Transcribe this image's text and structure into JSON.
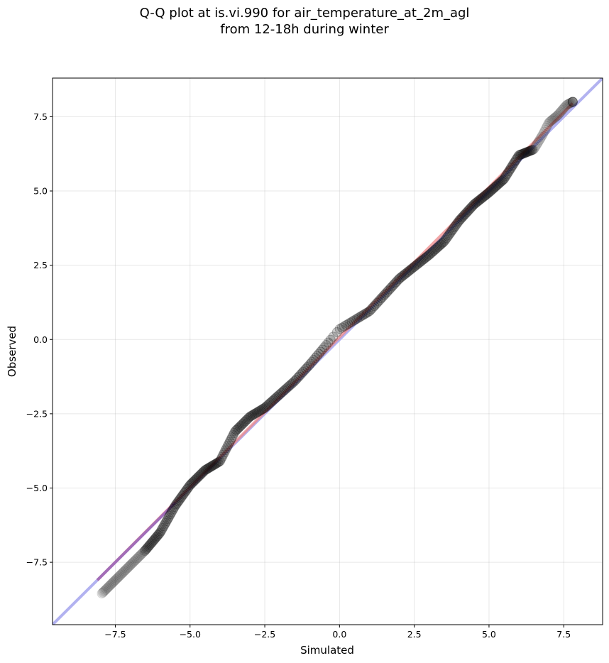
{
  "chart_data": {
    "type": "scatter",
    "title_line1": "Q-Q plot at is.vi.990 for air_temperature_at_2m_agl",
    "title_line2": "from 12-18h during winter",
    "xlabel": "Simulated",
    "ylabel": "Observed",
    "xlim": [
      -9.6,
      8.8
    ],
    "ylim": [
      -9.6,
      8.8
    ],
    "xticks": [
      -7.5,
      -5.0,
      -2.5,
      0.0,
      2.5,
      5.0,
      7.5
    ],
    "yticks": [
      -7.5,
      -5.0,
      -2.5,
      0.0,
      2.5,
      5.0,
      7.5
    ],
    "xtick_labels": [
      "−7.5",
      "−5.0",
      "−2.5",
      "0.0",
      "2.5",
      "5.0",
      "7.5"
    ],
    "ytick_labels": [
      "−7.5",
      "−5.0",
      "−2.5",
      "0.0",
      "2.5",
      "5.0",
      "7.5"
    ],
    "grid": true,
    "colors": {
      "points": "#000000",
      "identity_line": "#aaaaee",
      "fit_line": "#ee8888",
      "overlap": "#9966bb"
    },
    "identity_line": {
      "from": [
        -9.6,
        -9.6
      ],
      "to": [
        8.8,
        8.8
      ]
    },
    "fit_line": {
      "from": [
        -8.1,
        -8.1
      ],
      "to": [
        7.8,
        7.95
      ]
    },
    "quantile_anchors": {
      "x": [
        -8.1,
        -7.9,
        -7.5,
        -7.0,
        -6.5,
        -6.0,
        -5.5,
        -5.0,
        -4.5,
        -4.0,
        -3.5,
        -3.0,
        -2.5,
        -2.0,
        -1.5,
        -1.0,
        -0.5,
        0.0,
        0.5,
        1.0,
        1.5,
        2.0,
        2.5,
        3.0,
        3.5,
        4.0,
        4.5,
        5.0,
        5.5,
        6.0,
        6.5,
        6.8,
        7.0,
        7.3,
        7.6,
        7.8
      ],
      "y": [
        -8.7,
        -8.5,
        -8.1,
        -7.6,
        -7.1,
        -6.5,
        -5.6,
        -4.9,
        -4.4,
        -4.1,
        -3.1,
        -2.6,
        -2.3,
        -1.85,
        -1.4,
        -0.85,
        -0.25,
        0.35,
        0.65,
        0.95,
        1.5,
        2.05,
        2.45,
        2.85,
        3.3,
        4.0,
        4.55,
        4.95,
        5.4,
        6.2,
        6.4,
        6.9,
        7.3,
        7.55,
        7.9,
        8.0
      ]
    }
  }
}
